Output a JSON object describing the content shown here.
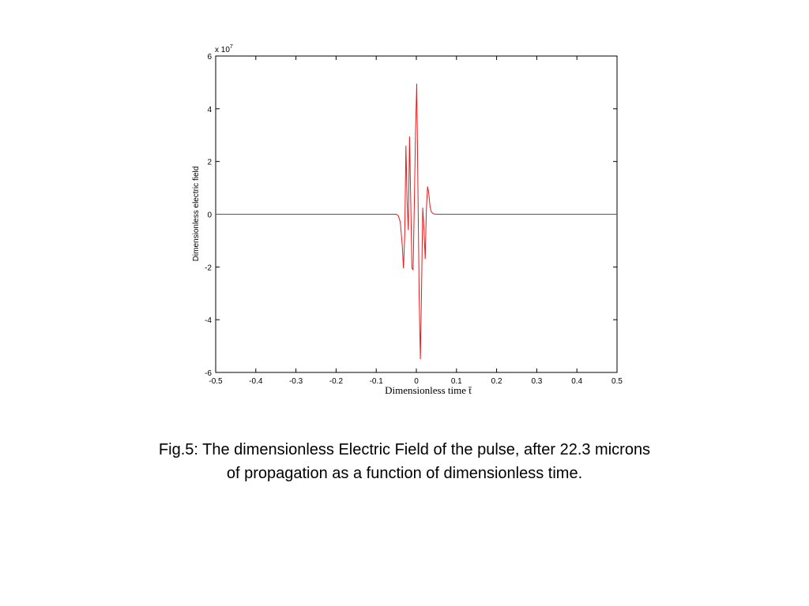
{
  "chart_data": {
    "type": "line",
    "xlabel": "Dimensionless time t̄",
    "ylabel": "Dimensionless electric field",
    "y_exponent_label": "x 10",
    "y_exponent_power": "7",
    "xlim": [
      -0.5,
      0.5
    ],
    "ylim": [
      -6,
      6
    ],
    "xticks": [
      -0.5,
      -0.4,
      -0.3,
      -0.2,
      -0.1,
      0,
      0.1,
      0.2,
      0.3,
      0.4,
      0.5
    ],
    "xtick_labels": [
      "-0.5",
      "-0.4",
      "-0.3",
      "-0.2",
      "-0.1",
      "0",
      "0.1",
      "0.2",
      "0.3",
      "0.4",
      "0.5"
    ],
    "yticks": [
      -6,
      -4,
      -2,
      0,
      2,
      4,
      6
    ],
    "ytick_labels": [
      "-6",
      "-4",
      "-2",
      "0",
      "2",
      "4",
      "6"
    ],
    "grid": false,
    "series": [
      {
        "color": "#e8191b",
        "x": [
          -0.5,
          -0.05,
          -0.045,
          -0.04,
          -0.035,
          -0.032,
          -0.029,
          -0.026,
          -0.023,
          -0.02,
          -0.017,
          -0.014,
          -0.011,
          -0.008,
          -0.005,
          -0.002,
          0.001,
          0.004,
          0.007,
          0.01,
          0.013,
          0.016,
          0.019,
          0.022,
          0.025,
          0.028,
          0.031,
          0.034,
          0.037,
          0.041,
          0.045,
          0.05,
          0.055,
          0.06,
          0.5
        ],
        "y": [
          0,
          0,
          -0.05,
          -0.3,
          -1.2,
          -2.05,
          -0.8,
          2.6,
          0.5,
          -0.6,
          2.95,
          0.5,
          -2.05,
          -2.1,
          0.5,
          3.2,
          4.95,
          1.0,
          -3.2,
          -5.5,
          -2.8,
          0.25,
          -0.6,
          -1.7,
          0.2,
          1.05,
          0.8,
          0.3,
          0.1,
          0.03,
          0.01,
          0,
          0,
          0,
          0
        ]
      }
    ]
  },
  "caption": {
    "line1": "Fig.5: The dimensionless Electric Field of the pulse, after 22.3 microns",
    "line2": "of propagation as a function of dimensionless time."
  }
}
